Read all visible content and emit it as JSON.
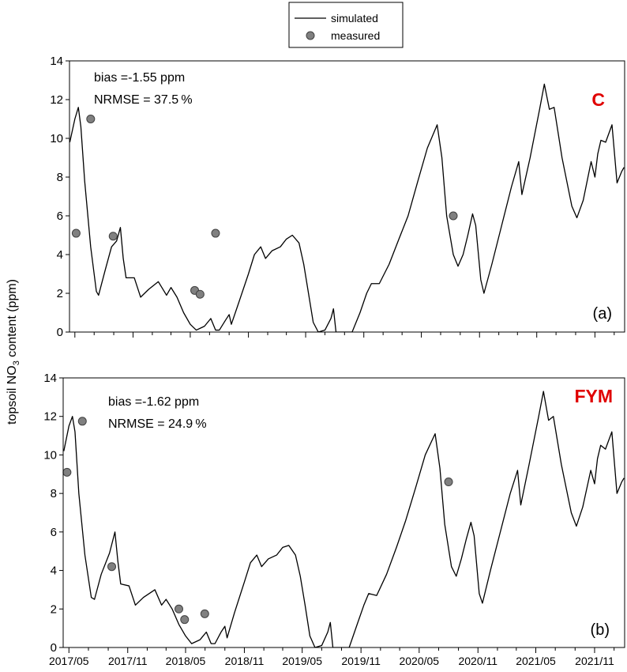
{
  "chart_data": [
    {
      "type": "line",
      "panel": "(a)",
      "treatment": "C",
      "annotations": {
        "bias": "bias =-1.55 ppm",
        "nrmse": "NRMSE = 37.5 %"
      },
      "ylabel": "topsoil NO3 content (ppm)",
      "ylim": [
        0,
        14
      ],
      "yticks": [
        "0",
        "2",
        "4",
        "6",
        "8",
        "10",
        "12",
        "14"
      ],
      "xticks": [
        "2017/05",
        "2017/11",
        "2018/05",
        "2018/11",
        "2019/05",
        "2019/11",
        "2020/05",
        "2020/11",
        "2021/05",
        "2021/11"
      ],
      "series": [
        {
          "name": "simulated",
          "style": "line",
          "points": [
            [
              "2017-04-15",
              9.8
            ],
            [
              "2017-05-01",
              11.0
            ],
            [
              "2017-05-12",
              11.6
            ],
            [
              "2017-05-20",
              10.6
            ],
            [
              "2017-06-01",
              7.8
            ],
            [
              "2017-06-20",
              4.4
            ],
            [
              "2017-07-08",
              2.1
            ],
            [
              "2017-07-15",
              1.9
            ],
            [
              "2017-08-05",
              3.2
            ],
            [
              "2017-08-25",
              4.4
            ],
            [
              "2017-09-10",
              4.7
            ],
            [
              "2017-09-22",
              5.4
            ],
            [
              "2017-10-01",
              3.8
            ],
            [
              "2017-10-10",
              2.8
            ],
            [
              "2017-11-05",
              2.8
            ],
            [
              "2017-11-25",
              1.8
            ],
            [
              "2017-12-20",
              2.2
            ],
            [
              "2018-01-20",
              2.6
            ],
            [
              "2018-02-15",
              1.9
            ],
            [
              "2018-03-01",
              2.3
            ],
            [
              "2018-03-20",
              1.8
            ],
            [
              "2018-04-10",
              1.0
            ],
            [
              "2018-05-01",
              0.4
            ],
            [
              "2018-05-20",
              0.1
            ],
            [
              "2018-06-15",
              0.3
            ],
            [
              "2018-07-05",
              0.7
            ],
            [
              "2018-07-20",
              0.1
            ],
            [
              "2018-08-01",
              0.1
            ],
            [
              "2018-08-20",
              0.6
            ],
            [
              "2018-09-01",
              0.9
            ],
            [
              "2018-09-08",
              0.4
            ],
            [
              "2018-10-01",
              1.5
            ],
            [
              "2018-11-01",
              3.0
            ],
            [
              "2018-11-20",
              4.0
            ],
            [
              "2018-12-10",
              4.4
            ],
            [
              "2018-12-25",
              3.8
            ],
            [
              "2019-01-15",
              4.2
            ],
            [
              "2019-02-10",
              4.4
            ],
            [
              "2019-03-01",
              4.8
            ],
            [
              "2019-03-20",
              5.0
            ],
            [
              "2019-04-10",
              4.6
            ],
            [
              "2019-04-25",
              3.5
            ],
            [
              "2019-05-10",
              2.0
            ],
            [
              "2019-05-25",
              0.5
            ],
            [
              "2019-06-10",
              0.0
            ],
            [
              "2019-07-01",
              0.1
            ],
            [
              "2019-07-20",
              0.7
            ],
            [
              "2019-07-28",
              1.2
            ],
            [
              "2019-08-05",
              0.0
            ],
            [
              "2019-09-01",
              0.0
            ],
            [
              "2019-09-25",
              0.0
            ],
            [
              "2019-10-20",
              1.0
            ],
            [
              "2019-11-10",
              2.0
            ],
            [
              "2019-11-25",
              2.5
            ],
            [
              "2019-12-20",
              2.5
            ],
            [
              "2020-01-20",
              3.5
            ],
            [
              "2020-02-20",
              4.8
            ],
            [
              "2020-03-20",
              6.0
            ],
            [
              "2020-04-20",
              7.8
            ],
            [
              "2020-05-20",
              9.5
            ],
            [
              "2020-06-20",
              10.7
            ],
            [
              "2020-07-05",
              9.0
            ],
            [
              "2020-07-20",
              6.0
            ],
            [
              "2020-08-10",
              4.0
            ],
            [
              "2020-08-25",
              3.4
            ],
            [
              "2020-09-10",
              4.0
            ],
            [
              "2020-09-25",
              5.0
            ],
            [
              "2020-10-10",
              6.1
            ],
            [
              "2020-10-20",
              5.5
            ],
            [
              "2020-11-05",
              2.7
            ],
            [
              "2020-11-15",
              2.0
            ],
            [
              "2020-12-10",
              3.5
            ],
            [
              "2021-01-10",
              5.5
            ],
            [
              "2021-02-10",
              7.5
            ],
            [
              "2021-03-05",
              8.8
            ],
            [
              "2021-03-15",
              7.1
            ],
            [
              "2021-04-10",
              9.0
            ],
            [
              "2021-05-10",
              11.5
            ],
            [
              "2021-05-25",
              12.8
            ],
            [
              "2021-06-10",
              11.5
            ],
            [
              "2021-06-25",
              11.6
            ],
            [
              "2021-07-20",
              9.0
            ],
            [
              "2021-08-20",
              6.5
            ],
            [
              "2021-09-05",
              5.9
            ],
            [
              "2021-09-25",
              6.8
            ],
            [
              "2021-10-20",
              8.8
            ],
            [
              "2021-11-01",
              8.0
            ],
            [
              "2021-11-10",
              9.2
            ],
            [
              "2021-11-20",
              9.9
            ],
            [
              "2021-12-05",
              9.8
            ],
            [
              "2021-12-25",
              10.7
            ],
            [
              "2022-01-10",
              7.7
            ],
            [
              "2022-01-25",
              8.3
            ],
            [
              "2022-02-01",
              8.5
            ]
          ]
        },
        {
          "name": "measured",
          "style": "marker",
          "points": [
            [
              "2017-05-05",
              5.1
            ],
            [
              "2017-06-20",
              11.0
            ],
            [
              "2017-08-30",
              4.95
            ],
            [
              "2018-05-15",
              2.15
            ],
            [
              "2018-06-01",
              1.95
            ],
            [
              "2018-07-20",
              5.1
            ],
            [
              "2020-08-10",
              6.0
            ]
          ]
        }
      ]
    },
    {
      "type": "line",
      "panel": "(b)",
      "treatment": "FYM",
      "annotations": {
        "bias": "bias =-1.62 ppm",
        "nrmse": "NRMSE = 24.9 %"
      },
      "ylabel": "topsoil NO3 content (ppm)",
      "ylim": [
        0,
        14
      ],
      "yticks": [
        "0",
        "2",
        "4",
        "6",
        "8",
        "10",
        "12",
        "14"
      ],
      "xticks": [
        "2017/05",
        "2017/11",
        "2018/05",
        "2018/11",
        "2019/05",
        "2019/11",
        "2020/05",
        "2020/11",
        "2021/05",
        "2021/11"
      ],
      "series": [
        {
          "name": "simulated",
          "style": "line",
          "points": [
            [
              "2017-04-15",
              10.2
            ],
            [
              "2017-05-01",
              11.5
            ],
            [
              "2017-05-12",
              12.0
            ],
            [
              "2017-05-20",
              11.2
            ],
            [
              "2017-06-01",
              8.0
            ],
            [
              "2017-06-20",
              4.8
            ],
            [
              "2017-07-10",
              2.6
            ],
            [
              "2017-07-20",
              2.5
            ],
            [
              "2017-08-10",
              3.8
            ],
            [
              "2017-09-05",
              4.9
            ],
            [
              "2017-09-22",
              6.0
            ],
            [
              "2017-10-01",
              4.5
            ],
            [
              "2017-10-10",
              3.3
            ],
            [
              "2017-11-05",
              3.2
            ],
            [
              "2017-11-25",
              2.2
            ],
            [
              "2017-12-20",
              2.6
            ],
            [
              "2018-01-25",
              3.0
            ],
            [
              "2018-02-15",
              2.2
            ],
            [
              "2018-03-01",
              2.5
            ],
            [
              "2018-03-20",
              2.0
            ],
            [
              "2018-04-10",
              1.2
            ],
            [
              "2018-05-01",
              0.6
            ],
            [
              "2018-05-20",
              0.2
            ],
            [
              "2018-06-15",
              0.4
            ],
            [
              "2018-07-05",
              0.8
            ],
            [
              "2018-07-20",
              0.2
            ],
            [
              "2018-08-01",
              0.2
            ],
            [
              "2018-08-20",
              0.8
            ],
            [
              "2018-09-01",
              1.1
            ],
            [
              "2018-09-08",
              0.5
            ],
            [
              "2018-10-01",
              1.8
            ],
            [
              "2018-11-01",
              3.4
            ],
            [
              "2018-11-20",
              4.4
            ],
            [
              "2018-12-10",
              4.8
            ],
            [
              "2018-12-25",
              4.2
            ],
            [
              "2019-01-15",
              4.6
            ],
            [
              "2019-02-10",
              4.8
            ],
            [
              "2019-03-01",
              5.2
            ],
            [
              "2019-03-20",
              5.3
            ],
            [
              "2019-04-10",
              4.8
            ],
            [
              "2019-04-25",
              3.7
            ],
            [
              "2019-05-10",
              2.2
            ],
            [
              "2019-05-25",
              0.6
            ],
            [
              "2019-06-10",
              0.0
            ],
            [
              "2019-07-01",
              0.1
            ],
            [
              "2019-07-20",
              0.8
            ],
            [
              "2019-07-28",
              1.3
            ],
            [
              "2019-08-05",
              0.0
            ],
            [
              "2019-09-01",
              0.0
            ],
            [
              "2019-09-25",
              0.0
            ],
            [
              "2019-10-20",
              1.2
            ],
            [
              "2019-11-10",
              2.2
            ],
            [
              "2019-11-25",
              2.8
            ],
            [
              "2019-12-20",
              2.7
            ],
            [
              "2020-01-20",
              3.8
            ],
            [
              "2020-02-20",
              5.2
            ],
            [
              "2020-03-20",
              6.6
            ],
            [
              "2020-04-20",
              8.3
            ],
            [
              "2020-05-20",
              10.0
            ],
            [
              "2020-06-20",
              11.1
            ],
            [
              "2020-07-05",
              9.3
            ],
            [
              "2020-07-20",
              6.4
            ],
            [
              "2020-08-10",
              4.2
            ],
            [
              "2020-08-25",
              3.7
            ],
            [
              "2020-09-10",
              4.6
            ],
            [
              "2020-09-25",
              5.6
            ],
            [
              "2020-10-10",
              6.5
            ],
            [
              "2020-10-20",
              5.8
            ],
            [
              "2020-11-05",
              2.8
            ],
            [
              "2020-11-15",
              2.3
            ],
            [
              "2020-12-10",
              4.0
            ],
            [
              "2021-01-10",
              6.0
            ],
            [
              "2021-02-10",
              8.0
            ],
            [
              "2021-03-05",
              9.2
            ],
            [
              "2021-03-15",
              7.4
            ],
            [
              "2021-04-10",
              9.5
            ],
            [
              "2021-05-10",
              12.0
            ],
            [
              "2021-05-25",
              13.3
            ],
            [
              "2021-06-10",
              11.8
            ],
            [
              "2021-06-25",
              12.0
            ],
            [
              "2021-07-20",
              9.5
            ],
            [
              "2021-08-20",
              7.0
            ],
            [
              "2021-09-05",
              6.3
            ],
            [
              "2021-09-25",
              7.3
            ],
            [
              "2021-10-20",
              9.2
            ],
            [
              "2021-11-01",
              8.5
            ],
            [
              "2021-11-10",
              9.8
            ],
            [
              "2021-11-20",
              10.5
            ],
            [
              "2021-12-05",
              10.3
            ],
            [
              "2021-12-25",
              11.2
            ],
            [
              "2022-01-10",
              8.0
            ],
            [
              "2022-01-25",
              8.6
            ],
            [
              "2022-02-01",
              8.8
            ]
          ]
        },
        {
          "name": "measured",
          "style": "marker",
          "points": [
            [
              "2017-04-25",
              9.1
            ],
            [
              "2017-06-12",
              11.75
            ],
            [
              "2017-09-12",
              4.2
            ],
            [
              "2018-04-10",
              2.0
            ],
            [
              "2018-04-28",
              1.45
            ],
            [
              "2018-06-30",
              1.75
            ],
            [
              "2020-08-01",
              8.6
            ]
          ]
        }
      ]
    }
  ],
  "legend": {
    "items": [
      {
        "label": "simulated",
        "kind": "line"
      },
      {
        "label": "measured",
        "kind": "marker"
      }
    ]
  },
  "ylabel_parts": {
    "pre": "topsoil NO",
    "sub": "3",
    "post": " content (ppm)"
  },
  "colors": {
    "line": "#000000",
    "marker_fill": "#808080",
    "marker_stroke": "#404040",
    "tag": "#e00000",
    "frame": "#000000"
  }
}
